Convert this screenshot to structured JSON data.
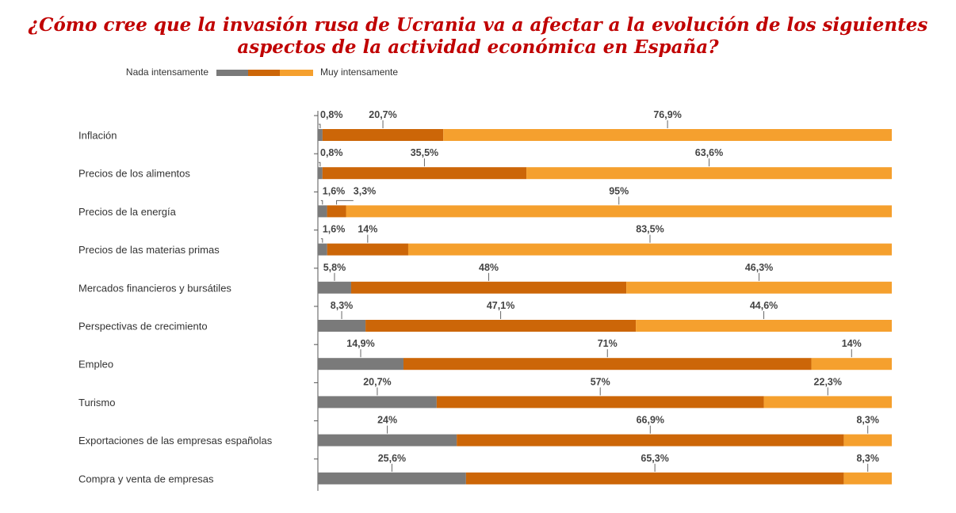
{
  "title_line1": "¿Cómo cree que la invasión rusa de Ucrania va a afectar a la evolución de los siguientes",
  "title_line2": "aspectos de la actividad económica en España?",
  "legend": {
    "left": "Nada intensamente",
    "right": "Muy intensamente"
  },
  "colors": {
    "title": "#c00000",
    "low": "#7a7a7a",
    "mid": "#cc6608",
    "high": "#f5a02e"
  },
  "chart_data": {
    "type": "bar",
    "stacked": true,
    "orientation": "horizontal",
    "title": "¿Cómo cree que la invasión rusa de Ucrania va a afectar a la evolución de los siguientes aspectos de la actividad económica en España?",
    "xlim": [
      0,
      100
    ],
    "legend_placement": "top-left",
    "categories": [
      "Inflación",
      "Precios de los alimentos",
      "Precios de la energía",
      "Precios de las materias primas",
      "Mercados financieros y bursátiles",
      "Perspectivas de crecimiento",
      "Empleo",
      "Turismo",
      "Exportaciones de las empresas españolas",
      "Compra y venta de empresas"
    ],
    "series": [
      {
        "values": [
          0.8,
          0.8,
          1.6,
          1.6,
          5.8,
          8.3,
          14.9,
          20.7,
          24,
          25.6
        ],
        "labels": [
          "0,8%",
          "0,8%",
          "1,6%",
          "1,6%",
          "5,8%",
          "8,3%",
          "14,9%",
          "20,7%",
          "24%",
          "25,6%"
        ]
      },
      {
        "values": [
          20.7,
          35.5,
          3.3,
          14,
          48,
          47.1,
          71,
          57,
          66.9,
          65.3
        ],
        "labels": [
          "20,7%",
          "35,5%",
          "3,3%",
          "14%",
          "48%",
          "47,1%",
          "71%",
          "57%",
          "66,9%",
          "65,3%"
        ]
      },
      {
        "values": [
          76.9,
          63.6,
          95,
          83.5,
          46.3,
          44.6,
          14,
          22.3,
          8.3,
          8.3
        ],
        "labels": [
          "76,9%",
          "63,6%",
          "95%",
          "83,5%",
          "46,3%",
          "44,6%",
          "14%",
          "22,3%",
          "8,3%",
          "8,3%"
        ]
      }
    ]
  }
}
